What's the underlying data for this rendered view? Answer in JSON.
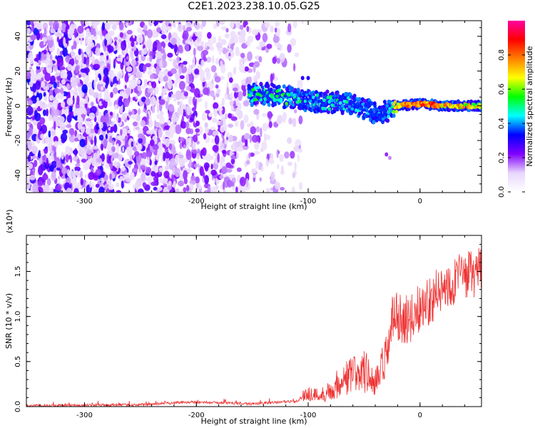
{
  "figure_title": "C2E1.2023.238.10.05.G25",
  "chart_data": [
    {
      "type": "heatmap",
      "title": "",
      "xlabel": "Height of straight line (km)",
      "ylabel": "Frequency (Hz)",
      "xlim": [
        -352,
        55
      ],
      "ylim": [
        -50,
        49
      ],
      "xticks": [
        -300,
        -200,
        -100,
        0
      ],
      "yticks": [
        -40,
        -20,
        0,
        20,
        40
      ],
      "colorbar": {
        "label": "Normalized spectral amplitude",
        "range": [
          0,
          1
        ],
        "ticks": [
          "0.0",
          "0.2",
          "0.4",
          "0.6",
          "0.8"
        ],
        "colors": [
          "#ffffff",
          "#e8d6fb",
          "#8000ff",
          "#0000ff",
          "#00ffff",
          "#00ff00",
          "#ffff00",
          "#ff8000",
          "#ff0000",
          "#ff00a0"
        ]
      },
      "trace": {
        "x": [
          -153,
          -140,
          -120,
          -100,
          -80,
          -60,
          -45,
          -38,
          -30,
          -20,
          0,
          5,
          20,
          40,
          55
        ],
        "frequency_hz": [
          6,
          7,
          5,
          3,
          2,
          1,
          -3,
          -5,
          -3,
          0,
          1,
          1,
          0,
          0,
          0
        ],
        "peak_amplitude": [
          0.6,
          0.55,
          0.6,
          0.5,
          0.55,
          0.5,
          0.45,
          0.4,
          0.5,
          0.85,
          0.9,
          0.95,
          0.85,
          0.8,
          0.75
        ]
      }
    },
    {
      "type": "line",
      "title": "",
      "xlabel": "Height of straight line (km)",
      "ylabel": "SNR (10 * v/v)",
      "yscale_label": "(x10⁴)",
      "xlim": [
        -352,
        55
      ],
      "ylim": [
        0,
        1.9
      ],
      "xticks": [
        -300,
        -200,
        -100,
        0
      ],
      "yticks": [
        "0.0",
        "0.5",
        "1.0",
        "1.5"
      ],
      "color": "#ee3333",
      "series": [
        {
          "x": [
            -352,
            -300,
            -250,
            -210,
            -200,
            -150,
            -110,
            -100,
            -90,
            -80,
            -70,
            -60,
            -50,
            -40,
            -30,
            -25,
            -20,
            -10,
            0,
            10,
            20,
            30,
            40,
            55
          ],
          "y": [
            0.01,
            0.015,
            0.02,
            0.05,
            0.05,
            0.03,
            0.06,
            0.15,
            0.12,
            0.18,
            0.3,
            0.35,
            0.4,
            0.25,
            0.5,
            0.95,
            1.0,
            0.95,
            1.1,
            1.2,
            1.3,
            1.4,
            1.45,
            1.5
          ]
        }
      ]
    }
  ]
}
